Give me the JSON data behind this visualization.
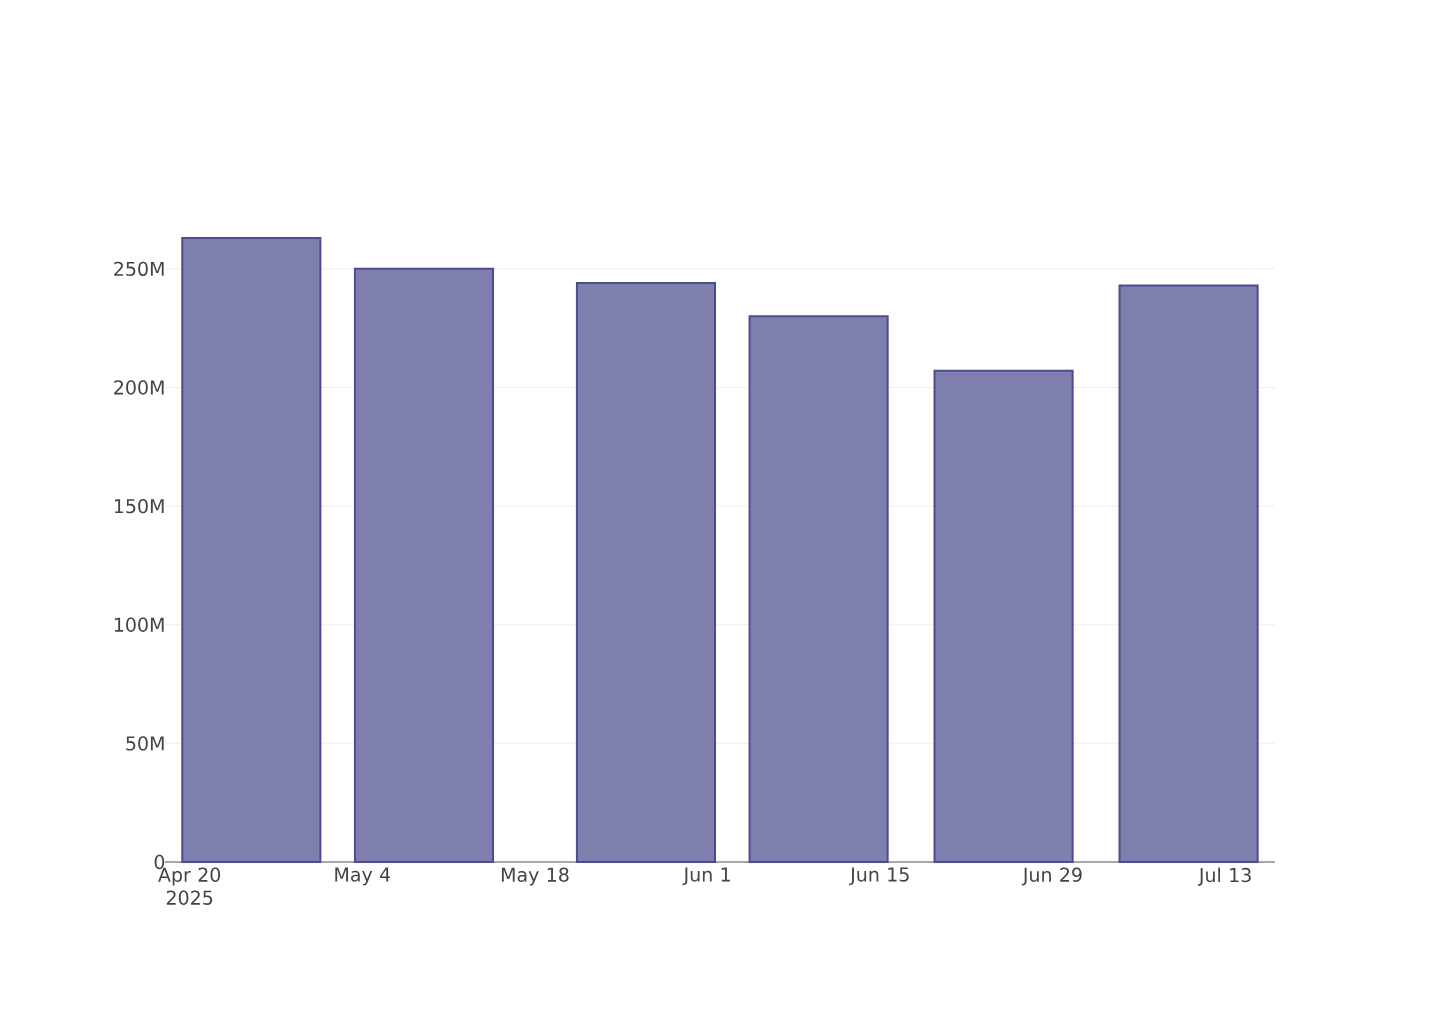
{
  "chart_data": {
    "type": "bar",
    "x": [
      "2025-04-25",
      "2025-05-09",
      "2025-05-27",
      "2025-06-10",
      "2025-06-25",
      "2025-07-10"
    ],
    "values": [
      263000000,
      250000000,
      244000000,
      230000000,
      207000000,
      243000000
    ],
    "color": "#7f7fae",
    "xlim": [
      "2025-04-18",
      "2025-07-17"
    ],
    "xticks": [
      {
        "value": "2025-04-20",
        "label": "Apr 20 2025"
      },
      {
        "value": "2025-05-04",
        "label": "May 4"
      },
      {
        "value": "2025-05-18",
        "label": "May 18"
      },
      {
        "value": "2025-06-01",
        "label": "Jun 1"
      },
      {
        "value": "2025-06-15",
        "label": "Jun 15"
      },
      {
        "value": "2025-06-29",
        "label": "Jun 29"
      },
      {
        "value": "2025-07-13",
        "label": "Jul 13"
      }
    ],
    "ylim": [
      0,
      263000000
    ],
    "yticks": [
      0,
      {
        "value": 50000000,
        "label": "50M"
      },
      {
        "value": 100000000,
        "label": "100M"
      },
      {
        "value": 150000000,
        "label": "150M"
      },
      {
        "value": 200000000,
        "label": "200M"
      },
      {
        "value": 250000000,
        "label": "250M"
      }
    ],
    "grid": "y"
  }
}
